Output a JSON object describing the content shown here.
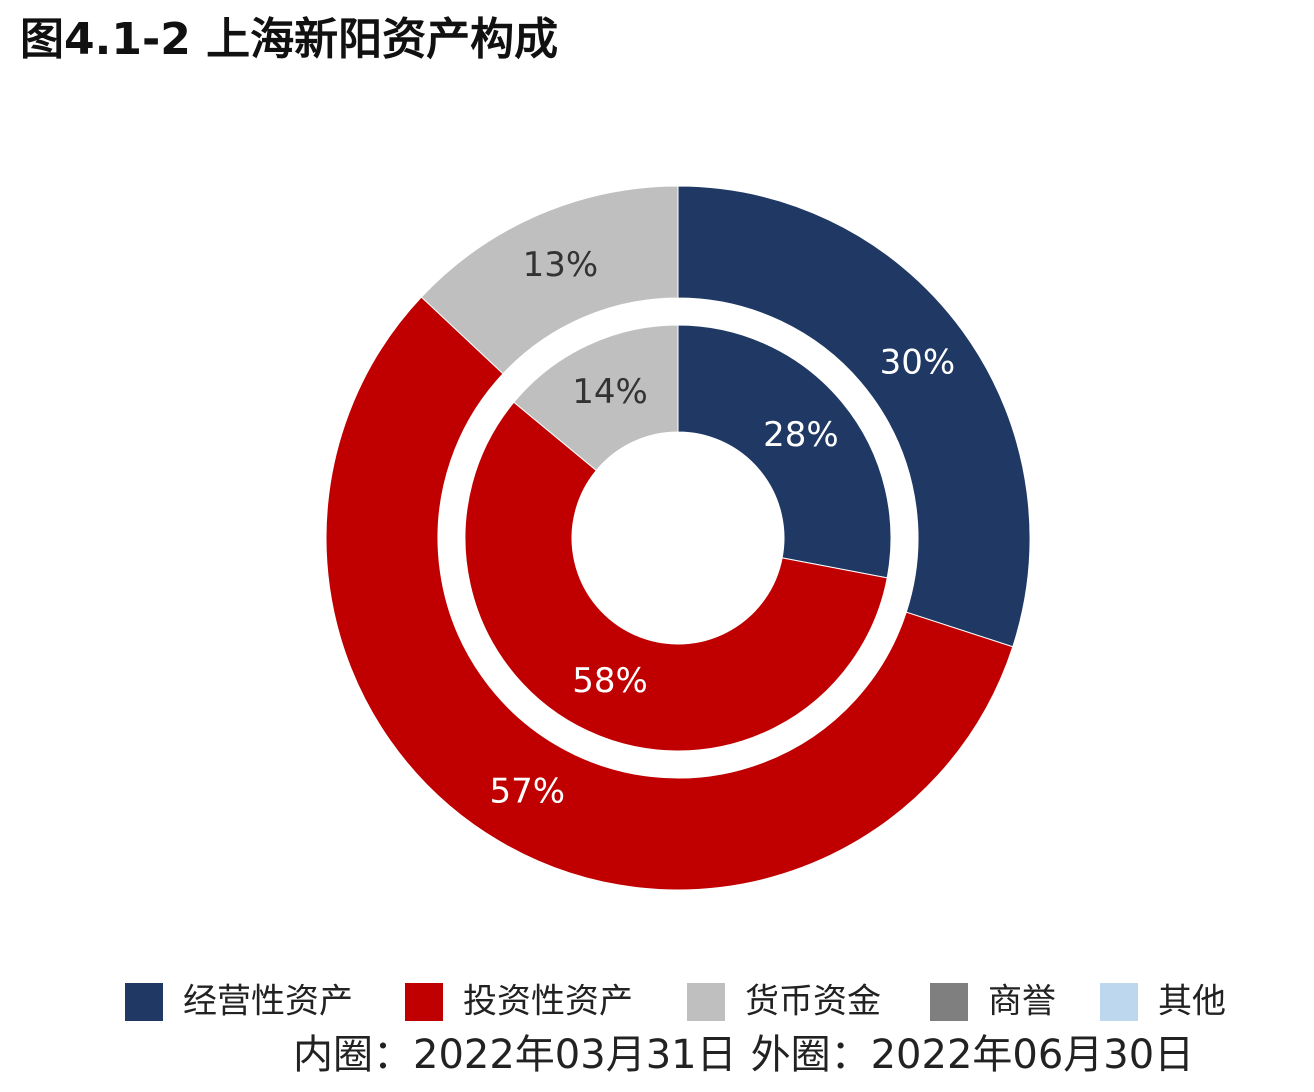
{
  "chart_data": {
    "type": "donut",
    "title": "图4.1-2 上海新阳资产构成",
    "categories": [
      "经营性资产",
      "投资性资产",
      "货币资金",
      "商誉",
      "其他"
    ],
    "colors": [
      "#1f3864",
      "#c00000",
      "#bfbfbf",
      "#7f7f7f",
      "#bdd7ee"
    ],
    "series": [
      {
        "name": "内圈：2022年03月31日",
        "values": [
          28,
          58,
          14,
          0,
          0
        ],
        "value_labels": [
          "28%",
          "58%",
          "14%",
          null,
          null
        ]
      },
      {
        "name": "外圈：2022年06月30日",
        "values": [
          30,
          57,
          13,
          0,
          0
        ],
        "value_labels": [
          "30%",
          "57%",
          "13%",
          null,
          null
        ]
      }
    ]
  }
}
